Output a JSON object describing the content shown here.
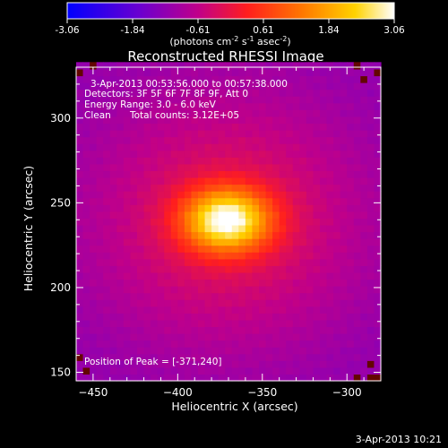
{
  "chart_data": {
    "type": "heatmap",
    "title": "Reconstructed RHESSI Image",
    "xlabel": "Heliocentric X (arcsec)",
    "ylabel": "Heliocentric Y (arcsec)",
    "xlim": [
      -460,
      -280
    ],
    "ylim": [
      145,
      330
    ],
    "xticks": [
      -450,
      -400,
      -350,
      -300
    ],
    "yticks": [
      150,
      200,
      250,
      300
    ],
    "colorbar": {
      "colormap": "hot",
      "range": [
        -3.06,
        3.06
      ],
      "ticks": [
        "-3.06",
        "-1.84",
        "-0.61",
        "0.61",
        "1.84",
        "3.06"
      ],
      "unit_text": "(photons cm",
      "unit_exp1": "-2",
      "unit_mid": " s",
      "unit_exp2": "-1",
      "unit_mid2": " asec",
      "unit_exp3": "-2",
      "unit_end": ")"
    },
    "annotations": {
      "time_range": "3-Apr-2013 00:53:56.000 to 00:57:38.000",
      "detectors": "Detectors: 3F 5F 6F 7F 8F 9F, Att 0",
      "energy_range": "Energy Range: 3.0 - 6.0 keV",
      "method": "Clean",
      "total_counts": "Total counts: 3.12E+05",
      "peak_position": "Position of Peak = [-371,240]"
    },
    "source": {
      "peak_x": -371,
      "peak_y": 240,
      "peak_value": 3.06,
      "background_value": -1.3
    }
  },
  "footer": {
    "timestamp": "3-Apr-2013 10:21"
  }
}
